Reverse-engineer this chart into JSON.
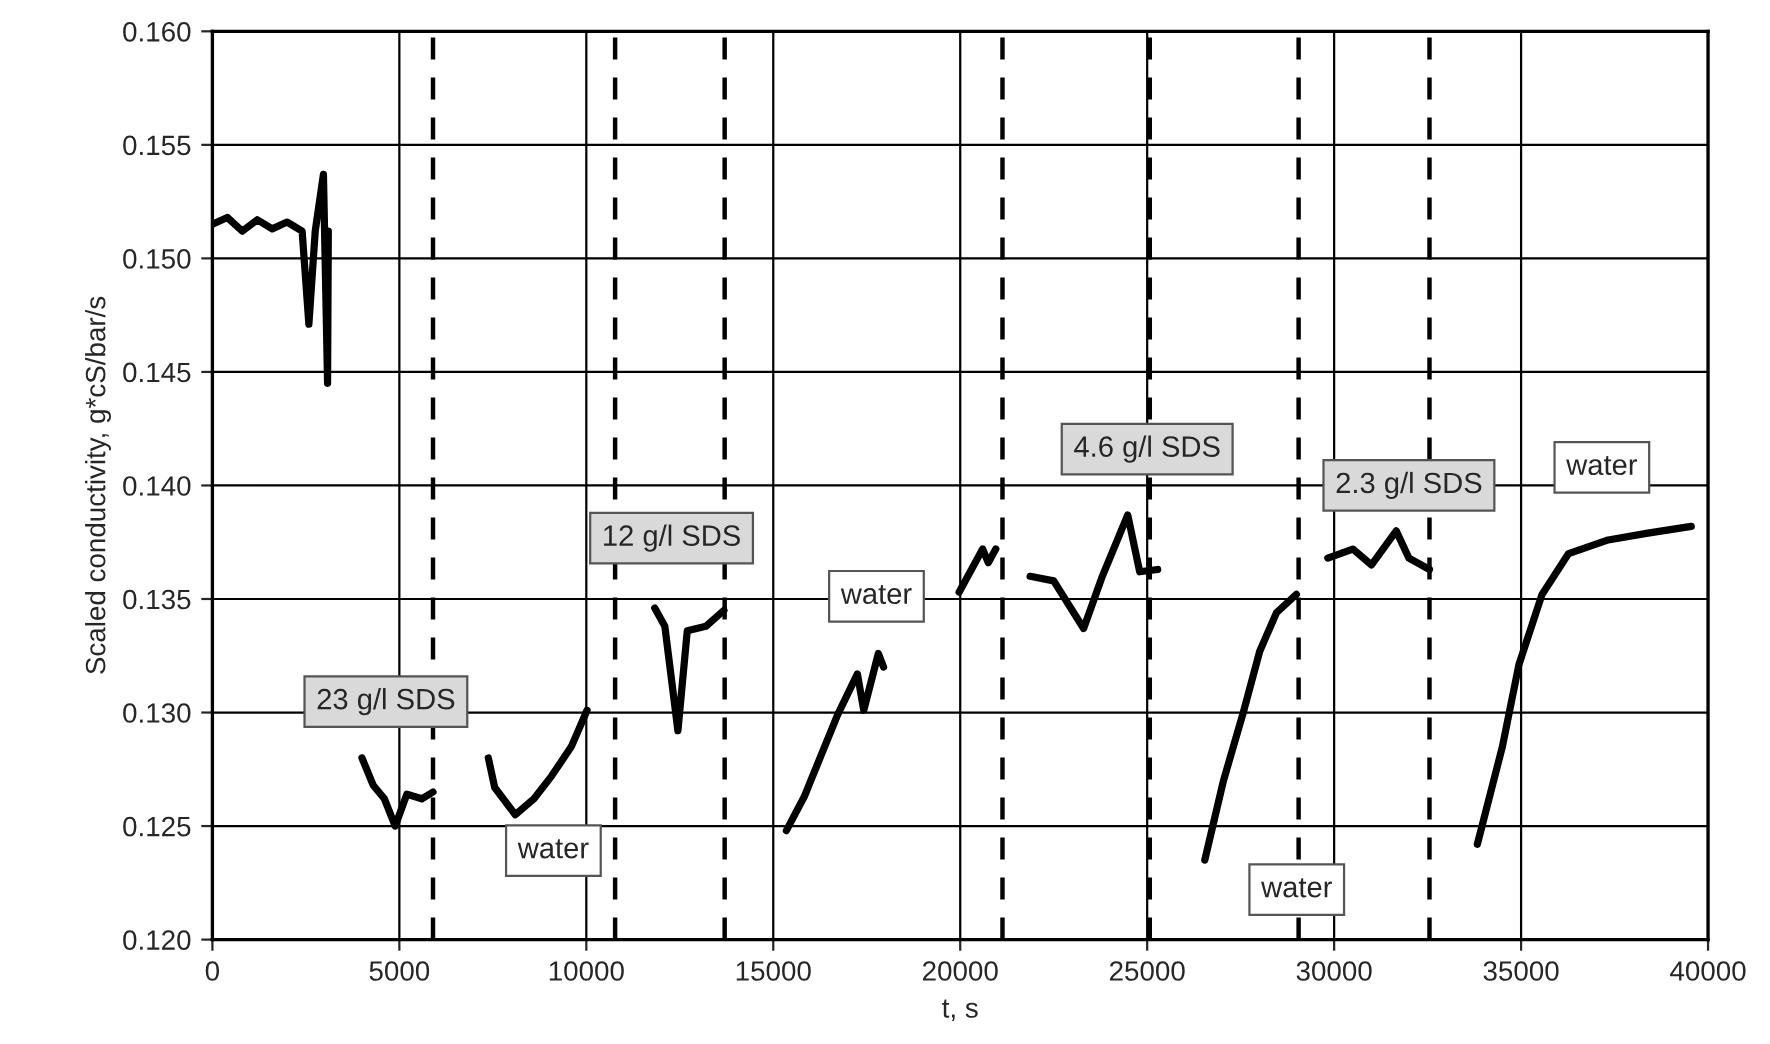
{
  "chart_data": {
    "type": "line",
    "xlabel": "t, s",
    "ylabel": "Scaled conductivity, g*cS/bar/s",
    "xlim": [
      0,
      40000
    ],
    "xticks": [
      0,
      5000,
      10000,
      15000,
      20000,
      25000,
      30000,
      35000,
      40000
    ],
    "ylim": [
      0.12,
      0.16
    ],
    "yticks": [
      {
        "value": 0.12,
        "label": "0.120"
      },
      {
        "value": 0.125,
        "label": "0.125"
      },
      {
        "value": 0.13,
        "label": "0.130"
      },
      {
        "value": 0.135,
        "label": "0.135"
      },
      {
        "value": 0.14,
        "label": "0.140"
      },
      {
        "value": 0.145,
        "label": "0.145"
      },
      {
        "value": 0.15,
        "label": "0.150"
      },
      {
        "value": 0.155,
        "label": "0.155"
      },
      {
        "value": 0.16,
        "label": "0.160"
      }
    ],
    "grid": true,
    "legend": false,
    "marker": "none",
    "line_style": "solid",
    "series": [
      {
        "color": "#000000",
        "x": [
          0,
          400,
          800,
          1200,
          1600,
          2000,
          2400,
          2580,
          2750,
          2970,
          3080,
          3100,
          3500,
          4000,
          4300,
          4600,
          4890,
          5200,
          5600,
          5900,
          6500,
          7380,
          7550,
          8100,
          8600,
          9070,
          9600,
          10020,
          11000,
          11830,
          12100,
          12450,
          12700,
          13200,
          13680,
          14500,
          15350,
          15830,
          16720,
          17250,
          17420,
          17810,
          17950,
          19000,
          19970,
          20300,
          20600,
          20750,
          20950,
          21500,
          21870,
          22500,
          23300,
          23800,
          24480,
          24800,
          25280,
          26000,
          26540,
          27040,
          27570,
          28010,
          28460,
          28990,
          29400,
          29830,
          30500,
          31000,
          31660,
          32000,
          32550,
          33200,
          33830,
          34500,
          34940,
          35560,
          36270,
          37330,
          38390,
          39550
        ],
        "values": [
          0.1515,
          0.1518,
          0.1512,
          0.1517,
          0.1513,
          0.1516,
          0.1512,
          0.1471,
          0.1512,
          0.1537,
          0.1445,
          0.1512,
          null,
          0.128,
          0.1268,
          0.1262,
          0.125,
          0.1264,
          0.1262,
          0.1265,
          null,
          0.128,
          0.1267,
          0.1255,
          0.1262,
          0.1272,
          0.1285,
          0.1301,
          null,
          0.1346,
          0.1338,
          0.1292,
          0.1336,
          0.1338,
          0.1345,
          null,
          0.1248,
          0.1263,
          0.1299,
          0.1317,
          0.1301,
          0.1326,
          0.132,
          null,
          0.1353,
          0.1363,
          0.1372,
          0.1366,
          0.1372,
          null,
          0.136,
          0.1358,
          0.1337,
          0.136,
          0.1387,
          0.1362,
          0.1363,
          null,
          0.1235,
          0.127,
          0.13,
          0.1327,
          0.1344,
          0.1352,
          null,
          0.1368,
          0.1372,
          0.1365,
          0.138,
          0.1368,
          0.1363,
          null,
          0.1242,
          0.1285,
          0.1321,
          0.1352,
          0.137,
          0.1376,
          0.1379,
          0.1382
        ]
      }
    ],
    "ref_lines": [
      {
        "axis": "x",
        "value": 5900,
        "color": "#000000",
        "line_style": "dashed"
      },
      {
        "axis": "x",
        "value": 10770,
        "color": "#000000",
        "line_style": "dashed"
      },
      {
        "axis": "x",
        "value": 13700,
        "color": "#000000",
        "line_style": "dashed"
      },
      {
        "axis": "x",
        "value": 21130,
        "color": "#000000",
        "line_style": "dashed"
      },
      {
        "axis": "x",
        "value": 25070,
        "color": "#000000",
        "line_style": "dashed"
      },
      {
        "axis": "x",
        "value": 29050,
        "color": "#000000",
        "line_style": "dashed"
      },
      {
        "axis": "x",
        "value": 32550,
        "color": "#000000",
        "line_style": "dashed"
      }
    ],
    "annotations": [
      "23 g/l SDS",
      "water",
      "12 g/l SDS",
      "water",
      "4.6 g/l SDS",
      "water",
      "2.3 g/l SDS",
      "water"
    ]
  }
}
